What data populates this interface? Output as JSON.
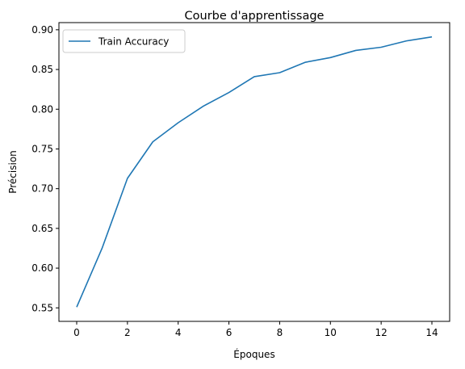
{
  "chart_data": {
    "type": "line",
    "title": "Courbe d'apprentissage",
    "xlabel": "Époques",
    "ylabel": "Précision",
    "x": [
      0,
      1,
      2,
      3,
      4,
      5,
      6,
      7,
      8,
      9,
      10,
      11,
      12,
      13,
      14
    ],
    "series": [
      {
        "name": "Train Accuracy",
        "color": "#1f77b4",
        "values": [
          0.551,
          0.625,
          0.713,
          0.759,
          0.783,
          0.804,
          0.821,
          0.841,
          0.846,
          0.859,
          0.865,
          0.874,
          0.878,
          0.886,
          0.891
        ]
      }
    ],
    "xlim": [
      -0.7,
      14.7
    ],
    "ylim": [
      0.533,
      0.909
    ],
    "xticks": [
      0,
      2,
      4,
      6,
      8,
      10,
      12,
      14
    ],
    "xtick_labels": [
      "0",
      "2",
      "4",
      "6",
      "8",
      "10",
      "12",
      "14"
    ],
    "yticks": [
      0.55,
      0.6,
      0.65,
      0.7,
      0.75,
      0.8,
      0.85,
      0.9
    ],
    "ytick_labels": [
      "0.55",
      "0.60",
      "0.65",
      "0.70",
      "0.75",
      "0.80",
      "0.85",
      "0.90"
    ],
    "grid": false,
    "legend_position": "upper left"
  }
}
